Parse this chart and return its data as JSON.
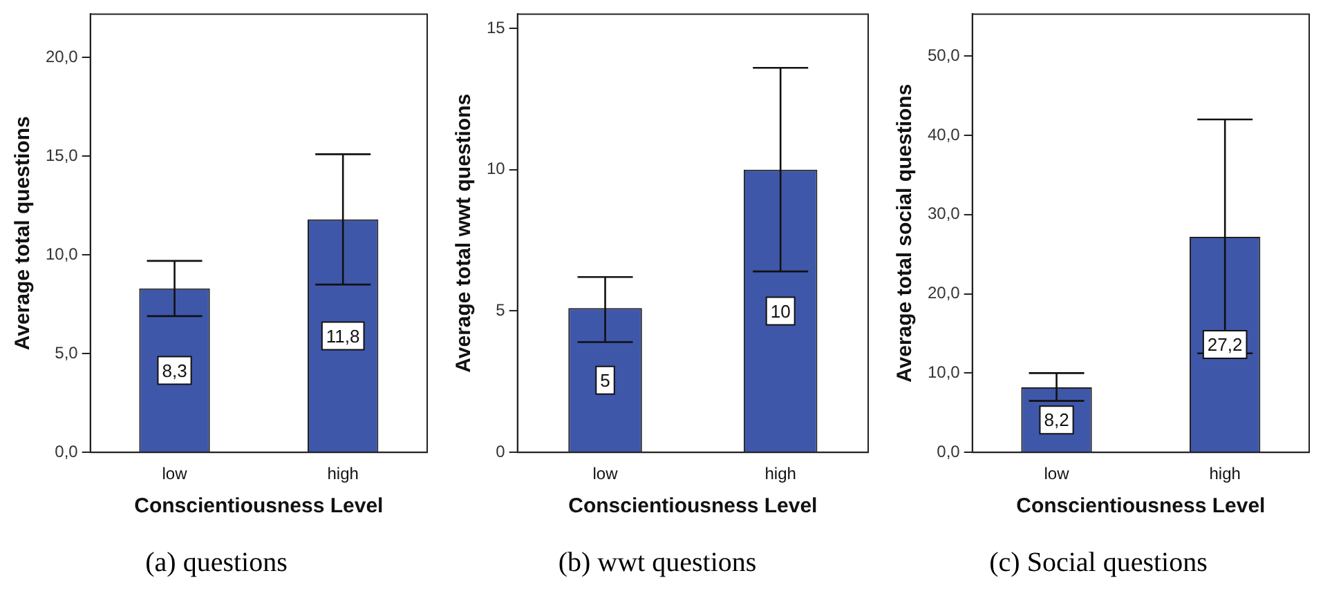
{
  "chart_data": [
    {
      "type": "bar",
      "title": "(a) questions",
      "xlabel": "Conscientiousness Level",
      "ylabel": "Average total questions",
      "categories": [
        "low",
        "high"
      ],
      "values": [
        8.3,
        11.8
      ],
      "value_labels": [
        "8,3",
        "11,8"
      ],
      "color": "#3f57a9",
      "errors": [
        [
          6.9,
          9.7
        ],
        [
          8.5,
          15.1
        ]
      ],
      "ylim": [
        0,
        22.2
      ],
      "yticks": [
        {
          "value": 0,
          "label": "0,0"
        },
        {
          "value": 5,
          "label": "5,0"
        },
        {
          "value": 10,
          "label": "10,0"
        },
        {
          "value": 15,
          "label": "15,0"
        },
        {
          "value": 20,
          "label": "20,0"
        }
      ],
      "grid": false,
      "legend": false
    },
    {
      "type": "bar",
      "title": "(b) wwt questions",
      "xlabel": "Conscientiousness Level",
      "ylabel": "Average total wwt questions",
      "categories": [
        "low",
        "high"
      ],
      "values": [
        5.1,
        10
      ],
      "value_labels": [
        "5",
        "10"
      ],
      "color": "#3f57a9",
      "errors": [
        [
          3.9,
          6.2
        ],
        [
          6.4,
          13.6
        ]
      ],
      "ylim": [
        0,
        15.5
      ],
      "yticks": [
        0,
        5,
        10,
        15
      ],
      "grid": false,
      "legend": false
    },
    {
      "type": "bar",
      "title": "(c) Social questions",
      "xlabel": "Conscientiousness Level",
      "ylabel": "Average total social questions",
      "categories": [
        "low",
        "high"
      ],
      "values": [
        8.2,
        27.2
      ],
      "value_labels": [
        "8,2",
        "27,2"
      ],
      "color": "#3f57a9",
      "errors": [
        [
          6.5,
          10.0
        ],
        [
          12.5,
          42.0
        ]
      ],
      "ylim": [
        0,
        55.3
      ],
      "yticks": [
        {
          "value": 0,
          "label": "0,0"
        },
        {
          "value": 10,
          "label": "10,0"
        },
        {
          "value": 20,
          "label": "20,0"
        },
        {
          "value": 30,
          "label": "30,0"
        },
        {
          "value": 40,
          "label": "40,0"
        },
        {
          "value": 50,
          "label": "50,0"
        }
      ],
      "grid": false,
      "legend": false
    }
  ]
}
